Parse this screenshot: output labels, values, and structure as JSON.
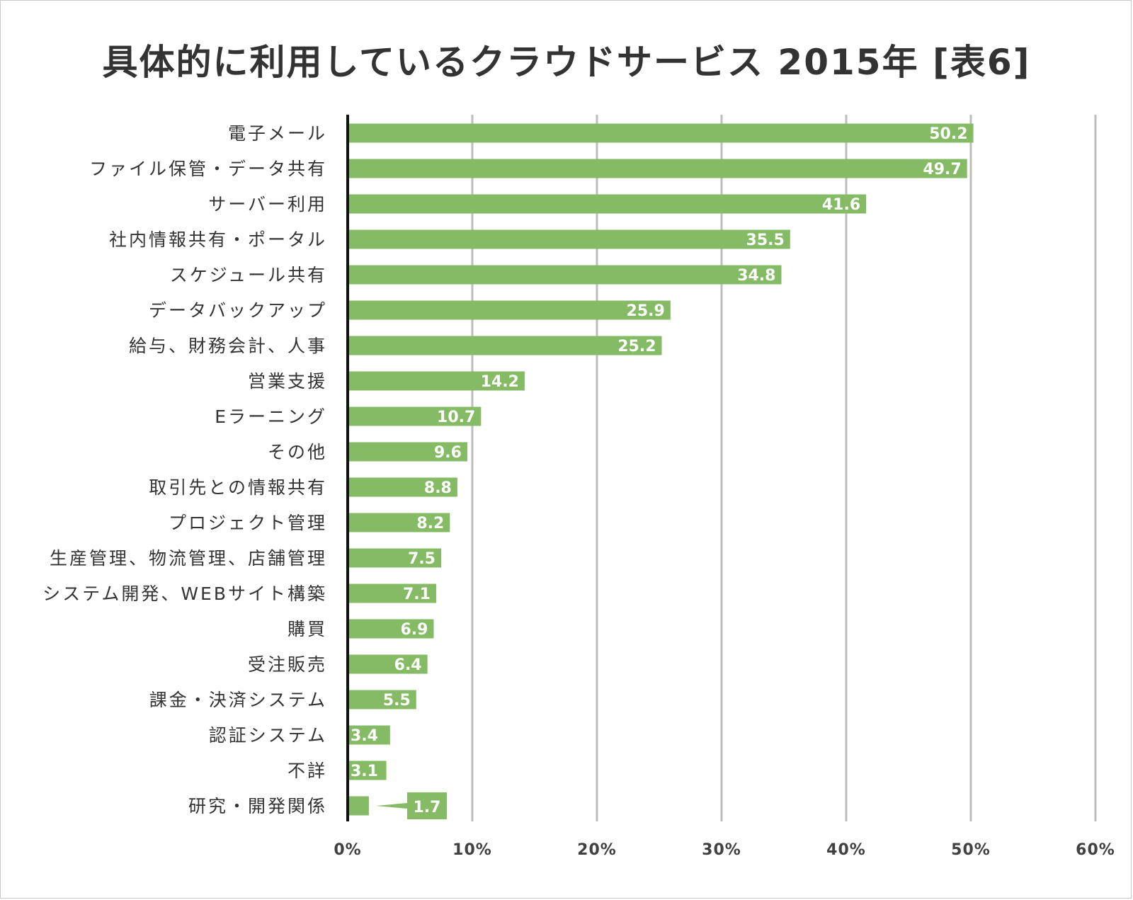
{
  "chart_data": {
    "type": "bar",
    "orientation": "horizontal",
    "title": "具体的に利用しているクラウドサービス 2015年 [表6]",
    "xlabel": "",
    "ylabel": "",
    "xlim": [
      0,
      60
    ],
    "tick_values": [
      0,
      10,
      20,
      30,
      40,
      50,
      60
    ],
    "tick_labels": [
      "0%",
      "10%",
      "20%",
      "30%",
      "40%",
      "50%",
      "60%"
    ],
    "categories": [
      "電子メール",
      "ファイル保管・データ共有",
      "サーバー利用",
      "社内情報共有・ポータル",
      "スケジュール共有",
      "データバックアップ",
      "給与、財務会計、人事",
      "営業支援",
      "Eラーニング",
      "その他",
      "取引先との情報共有",
      "プロジェクト管理",
      "生産管理、物流管理、店舗管理",
      "システム開発、WEBサイト構築",
      "購買",
      "受注販売",
      "課金・決済システム",
      "認証システム",
      "不詳",
      "研究・開発関係"
    ],
    "values": [
      50.2,
      49.7,
      41.6,
      35.5,
      34.8,
      25.9,
      25.2,
      14.2,
      10.7,
      9.6,
      8.8,
      8.2,
      7.5,
      7.1,
      6.9,
      6.4,
      5.5,
      3.4,
      3.1,
      1.7
    ],
    "value_labels": [
      "50.2",
      "49.7",
      "41.6",
      "35.5",
      "34.8",
      "25.9",
      "25.2",
      "14.2",
      "10.7",
      "9.6",
      "8.8",
      "8.2",
      "7.5",
      "7.1",
      "6.9",
      "6.4",
      "5.5",
      "3.4",
      "3.1",
      "1.7"
    ],
    "grid": true,
    "legend": "none"
  },
  "colors": {
    "bar": "#85bb65",
    "grid": "#bdbdbd",
    "axis": "#111111",
    "title": "#333333"
  }
}
